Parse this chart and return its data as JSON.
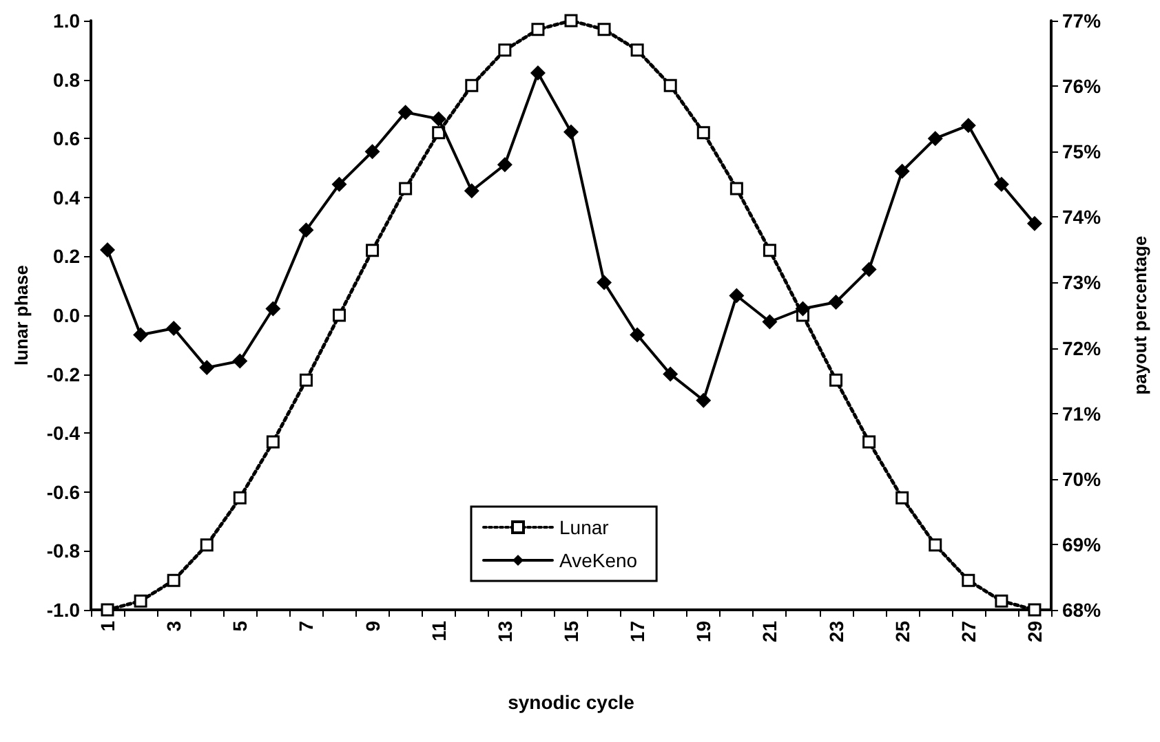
{
  "chart_data": {
    "type": "line",
    "xlabel": "synodic cycle",
    "ylabel": "lunar phase",
    "y2label": "payout percentage",
    "categories": [
      "1",
      null,
      "3",
      null,
      "5",
      null,
      "7",
      null,
      "9",
      null,
      "11",
      null,
      "13",
      null,
      "15",
      null,
      "17",
      null,
      "19",
      null,
      "21",
      null,
      "23",
      null,
      "25",
      null,
      "27",
      null,
      "29"
    ],
    "series": [
      {
        "name": "Lunar",
        "color": "#000000",
        "marker": "square",
        "line_style": "dotted",
        "values": [
          -1,
          -0.97,
          -0.9,
          -0.78,
          -0.62,
          -0.43,
          -0.22,
          0,
          0.22,
          0.43,
          0.62,
          0.78,
          0.9,
          0.97,
          1,
          0.97,
          0.9,
          0.78,
          0.62,
          0.43,
          0.22,
          0,
          -0.22,
          -0.43,
          -0.62,
          -0.78,
          -0.9,
          -0.97,
          -1
        ]
      },
      {
        "name": "AveKeno",
        "color": "#000000",
        "marker": "diamond",
        "line_style": "solid",
        "axis": "y2",
        "values": [
          73.5,
          72.2,
          72.3,
          71.7,
          71.8,
          72.6,
          73.8,
          74.5,
          75.0,
          75.6,
          75.5,
          74.4,
          74.8,
          76.2,
          75.3,
          73.0,
          72.2,
          71.6,
          71.2,
          72.8,
          72.4,
          72.6,
          72.7,
          73.2,
          74.7,
          75.2,
          75.4,
          74.5,
          73.9
        ]
      }
    ],
    "ylim": [
      -1,
      1
    ],
    "yticks": [
      {
        "value": -1,
        "label": "-1.0"
      },
      {
        "value": -0.8,
        "label": "-0.8"
      },
      {
        "value": -0.6,
        "label": "-0.6"
      },
      {
        "value": -0.4,
        "label": "-0.4"
      },
      {
        "value": -0.2,
        "label": "-0.2"
      },
      {
        "value": 0,
        "label": "0.0"
      },
      {
        "value": 0.2,
        "label": "0.2"
      },
      {
        "value": 0.4,
        "label": "0.4"
      },
      {
        "value": 0.6,
        "label": "0.6"
      },
      {
        "value": 0.8,
        "label": "0.8"
      },
      {
        "value": 1,
        "label": "1.0"
      }
    ],
    "y2lim": [
      68,
      77
    ],
    "y2ticks": [
      {
        "value": 68,
        "label": "68%"
      },
      {
        "value": 69,
        "label": "69%"
      },
      {
        "value": 70,
        "label": "70%"
      },
      {
        "value": 71,
        "label": "71%"
      },
      {
        "value": 72,
        "label": "72%"
      },
      {
        "value": 73,
        "label": "73%"
      },
      {
        "value": 74,
        "label": "74%"
      },
      {
        "value": 75,
        "label": "75%"
      },
      {
        "value": 76,
        "label": "76%"
      },
      {
        "value": 77,
        "label": "77%"
      }
    ],
    "grid": false,
    "legend": "bottom"
  }
}
